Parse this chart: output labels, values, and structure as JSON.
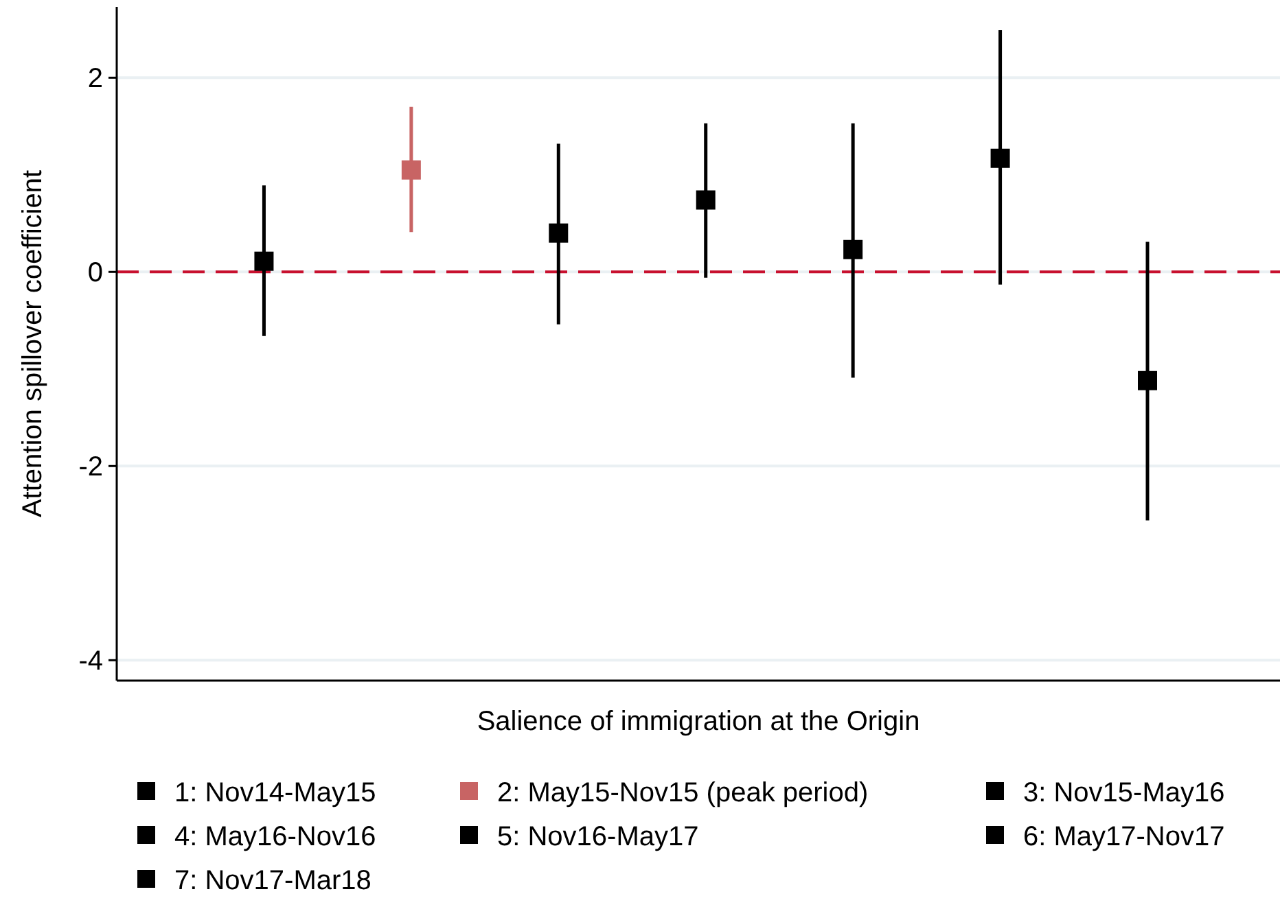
{
  "chart_data": {
    "type": "scatter",
    "xlabel": "Salience of immigration at the Origin",
    "ylabel": "Attention spillover coefficient",
    "categories": [
      null,
      null,
      null,
      null,
      null,
      null,
      null
    ],
    "ylim": [
      -4.21,
      2.73
    ],
    "yticks": [
      2,
      0,
      -2,
      -4
    ],
    "grid": "y",
    "legend": "bottom",
    "marker": "square",
    "ref_lines": [
      {
        "axis": "y",
        "value": 0,
        "color": "#c8102e",
        "line_style": "dashed"
      }
    ],
    "series": [
      {
        "name": "1: Nov14-May15",
        "color": "#000000",
        "values": [
          0.11,
          null,
          null,
          null,
          null,
          null,
          null
        ],
        "errors": [
          [
            -0.66,
            0.89
          ],
          null,
          null,
          null,
          null,
          null,
          null
        ]
      },
      {
        "name": "2: May15-Nov15 (peak period)",
        "color": "#c86464",
        "values": [
          null,
          1.05,
          null,
          null,
          null,
          null,
          null
        ],
        "errors": [
          null,
          [
            0.41,
            1.7
          ],
          null,
          null,
          null,
          null,
          null
        ]
      },
      {
        "name": "3: Nov15-May16",
        "color": "#000000",
        "values": [
          null,
          null,
          0.4,
          null,
          null,
          null,
          null
        ],
        "errors": [
          null,
          null,
          [
            -0.54,
            1.32
          ],
          null,
          null,
          null,
          null
        ]
      },
      {
        "name": "4: May16-Nov16",
        "color": "#000000",
        "values": [
          null,
          null,
          null,
          0.74,
          null,
          null,
          null
        ],
        "errors": [
          null,
          null,
          null,
          [
            -0.06,
            1.53
          ],
          null,
          null,
          null
        ]
      },
      {
        "name": "5: Nov16-May17",
        "color": "#000000",
        "values": [
          null,
          null,
          null,
          null,
          0.23,
          null,
          null
        ],
        "errors": [
          null,
          null,
          null,
          null,
          [
            -1.09,
            1.53
          ],
          null,
          null
        ]
      },
      {
        "name": "6: May17-Nov17",
        "color": "#000000",
        "values": [
          null,
          null,
          null,
          null,
          null,
          1.17,
          null
        ],
        "errors": [
          null,
          null,
          null,
          null,
          null,
          [
            -0.13,
            2.49
          ],
          null
        ]
      },
      {
        "name": "7: Nov17-Mar18",
        "color": "#000000",
        "values": [
          null,
          null,
          null,
          null,
          null,
          null,
          -1.12
        ],
        "errors": [
          null,
          null,
          null,
          null,
          null,
          null,
          [
            -2.56,
            0.31
          ]
        ]
      }
    ]
  }
}
